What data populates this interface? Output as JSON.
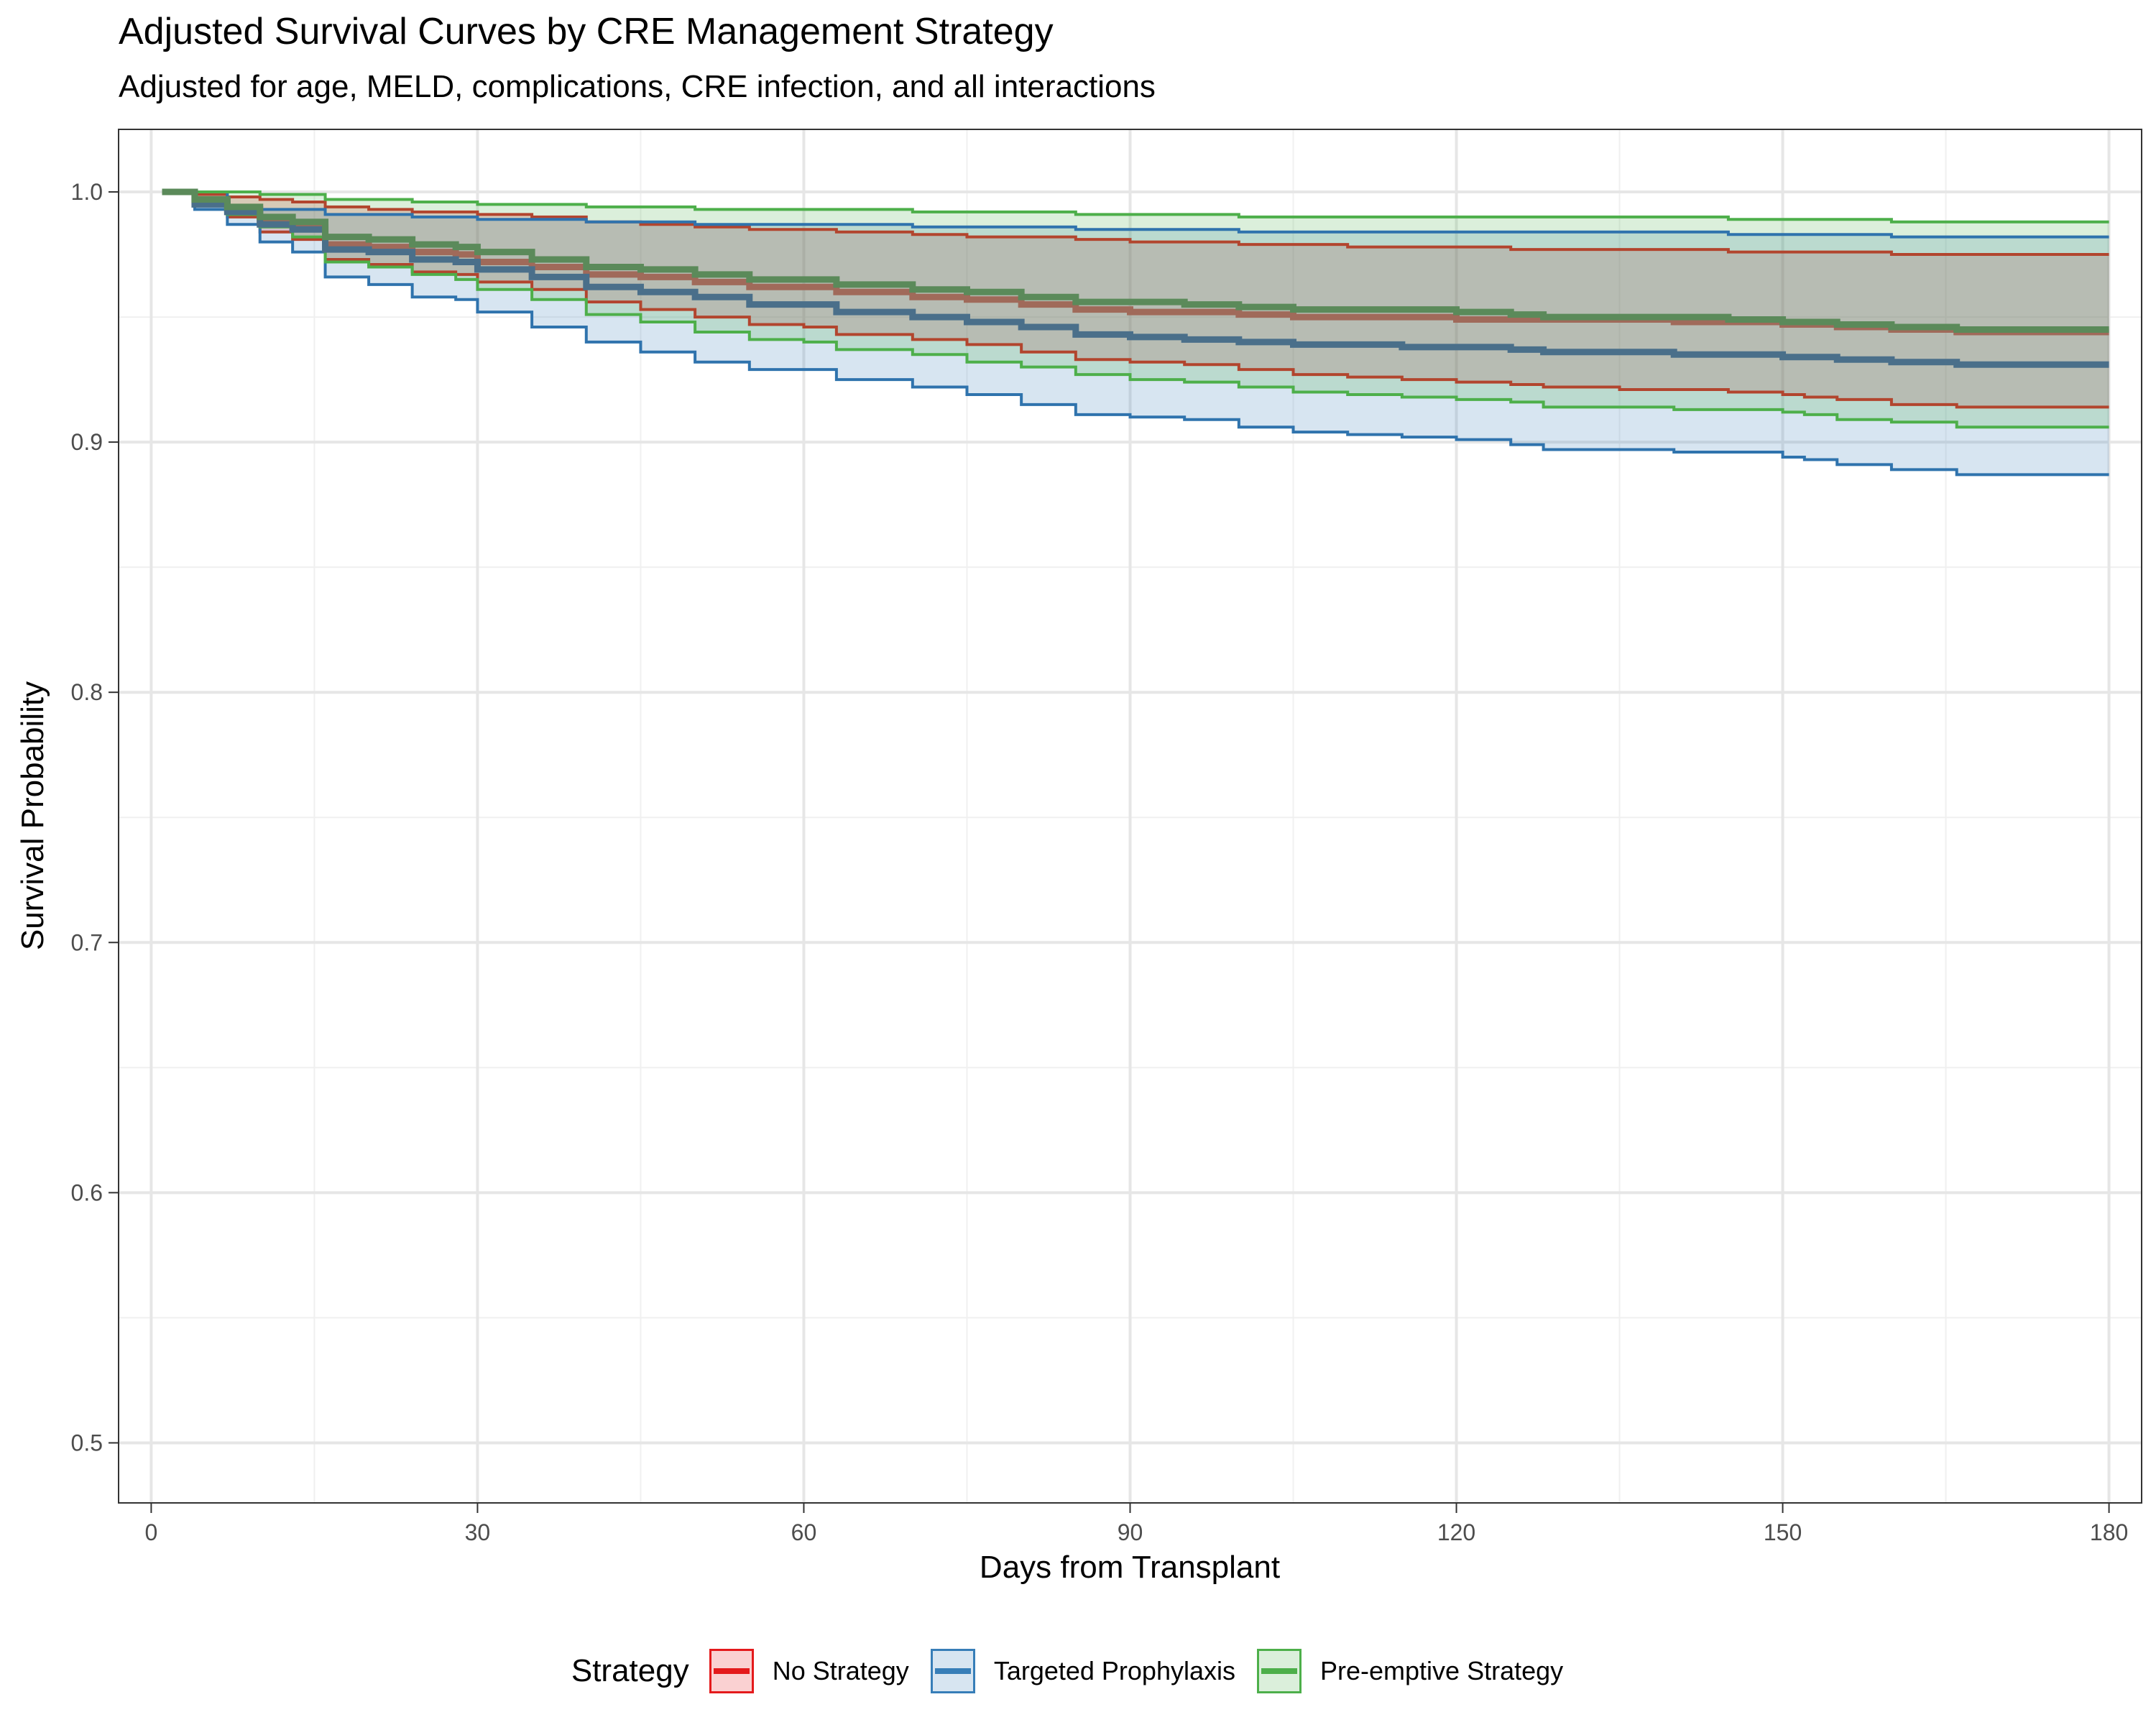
{
  "title": "Adjusted Survival Curves by CRE Management Strategy",
  "subtitle": "Adjusted for age, MELD, complications, CRE infection, and all interactions",
  "chart_data": {
    "type": "line",
    "xlabel": "Days from Transplant",
    "ylabel": "Survival Probability",
    "xlim": [
      -3,
      183
    ],
    "ylim": [
      0.476,
      1.025
    ],
    "x_ticks": [
      "0",
      "30",
      "60",
      "90",
      "120",
      "150",
      "180"
    ],
    "y_ticks": [
      "0.5",
      "0.6",
      "0.7",
      "0.8",
      "0.9",
      "1.0"
    ],
    "grid": true,
    "legend_position": "bottom",
    "legend_title": "Strategy",
    "x": [
      1,
      4,
      7,
      10,
      13,
      16,
      20,
      24,
      28,
      30,
      35,
      40,
      45,
      50,
      55,
      60,
      63,
      70,
      75,
      80,
      85,
      90,
      95,
      100,
      105,
      110,
      115,
      120,
      125,
      128,
      135,
      140,
      145,
      150,
      152,
      155,
      160,
      166,
      170,
      175,
      180
    ],
    "series": [
      {
        "name": "No Strategy",
        "color": "#e41a1c",
        "line_color": "#b2452e",
        "values": [
          1.0,
          0.996,
          0.993,
          0.988,
          0.986,
          0.979,
          0.978,
          0.976,
          0.975,
          0.972,
          0.97,
          0.967,
          0.966,
          0.964,
          0.962,
          0.962,
          0.96,
          0.958,
          0.957,
          0.955,
          0.953,
          0.952,
          0.952,
          0.951,
          0.95,
          0.95,
          0.95,
          0.949,
          0.949,
          0.949,
          0.949,
          0.948,
          0.948,
          0.947,
          0.947,
          0.946,
          0.945,
          0.944,
          0.944,
          0.944,
          0.944
        ],
        "lower": [
          1.0,
          0.995,
          0.99,
          0.984,
          0.981,
          0.973,
          0.971,
          0.968,
          0.967,
          0.964,
          0.961,
          0.956,
          0.953,
          0.95,
          0.947,
          0.946,
          0.943,
          0.941,
          0.939,
          0.936,
          0.933,
          0.932,
          0.931,
          0.929,
          0.927,
          0.926,
          0.925,
          0.924,
          0.923,
          0.922,
          0.921,
          0.921,
          0.92,
          0.919,
          0.918,
          0.917,
          0.915,
          0.914,
          0.914,
          0.914,
          0.914
        ],
        "upper": [
          1.0,
          0.999,
          0.998,
          0.997,
          0.996,
          0.994,
          0.993,
          0.992,
          0.992,
          0.991,
          0.99,
          0.988,
          0.987,
          0.986,
          0.985,
          0.985,
          0.984,
          0.983,
          0.982,
          0.982,
          0.981,
          0.98,
          0.98,
          0.979,
          0.979,
          0.978,
          0.978,
          0.978,
          0.977,
          0.977,
          0.977,
          0.977,
          0.976,
          0.976,
          0.976,
          0.976,
          0.975,
          0.975,
          0.975,
          0.975,
          0.975
        ]
      },
      {
        "name": "Targeted Prophylaxis",
        "color": "#377eb8",
        "line_color": "#2f73ad",
        "values": [
          1.0,
          0.995,
          0.992,
          0.987,
          0.985,
          0.977,
          0.976,
          0.973,
          0.972,
          0.969,
          0.966,
          0.962,
          0.96,
          0.958,
          0.955,
          0.955,
          0.952,
          0.95,
          0.948,
          0.946,
          0.943,
          0.942,
          0.941,
          0.94,
          0.939,
          0.939,
          0.938,
          0.938,
          0.937,
          0.936,
          0.936,
          0.935,
          0.935,
          0.934,
          0.934,
          0.933,
          0.932,
          0.931,
          0.931,
          0.931,
          0.931
        ],
        "lower": [
          1.0,
          0.993,
          0.987,
          0.98,
          0.976,
          0.966,
          0.963,
          0.958,
          0.957,
          0.952,
          0.946,
          0.94,
          0.936,
          0.932,
          0.929,
          0.929,
          0.925,
          0.922,
          0.919,
          0.915,
          0.911,
          0.91,
          0.909,
          0.906,
          0.904,
          0.903,
          0.902,
          0.901,
          0.899,
          0.897,
          0.897,
          0.896,
          0.896,
          0.894,
          0.893,
          0.891,
          0.889,
          0.887,
          0.887,
          0.887,
          0.887
        ]
      },
      {
        "name": "Pre-emptive Strategy",
        "color": "#4daf4a",
        "line_color": "#4daf4a",
        "values": [
          1.0,
          0.997,
          0.994,
          0.99,
          0.988,
          0.982,
          0.981,
          0.979,
          0.978,
          0.976,
          0.973,
          0.97,
          0.969,
          0.967,
          0.965,
          0.965,
          0.963,
          0.961,
          0.96,
          0.958,
          0.956,
          0.956,
          0.955,
          0.954,
          0.953,
          0.953,
          0.953,
          0.952,
          0.951,
          0.95,
          0.95,
          0.95,
          0.949,
          0.948,
          0.948,
          0.947,
          0.946,
          0.945,
          0.945,
          0.945,
          0.945
        ],
        "lower": [
          1.0,
          0.996,
          0.991,
          0.986,
          0.982,
          0.972,
          0.97,
          0.967,
          0.965,
          0.961,
          0.957,
          0.951,
          0.948,
          0.944,
          0.941,
          0.94,
          0.937,
          0.935,
          0.932,
          0.93,
          0.927,
          0.925,
          0.924,
          0.922,
          0.92,
          0.919,
          0.918,
          0.917,
          0.916,
          0.914,
          0.914,
          0.913,
          0.913,
          0.912,
          0.911,
          0.909,
          0.908,
          0.906,
          0.906,
          0.906,
          0.906
        ],
        "upper": [
          1.0,
          1.0,
          1.0,
          0.999,
          0.999,
          0.997,
          0.997,
          0.996,
          0.996,
          0.995,
          0.995,
          0.994,
          0.994,
          0.993,
          0.993,
          0.993,
          0.993,
          0.992,
          0.992,
          0.992,
          0.991,
          0.991,
          0.991,
          0.99,
          0.99,
          0.99,
          0.99,
          0.99,
          0.99,
          0.99,
          0.99,
          0.99,
          0.989,
          0.989,
          0.989,
          0.989,
          0.988,
          0.988,
          0.988,
          0.988,
          0.988
        ]
      }
    ]
  },
  "legend": {
    "title": "Strategy",
    "items": [
      "No Strategy",
      "Targeted Prophylaxis",
      "Pre-emptive Strategy"
    ]
  }
}
